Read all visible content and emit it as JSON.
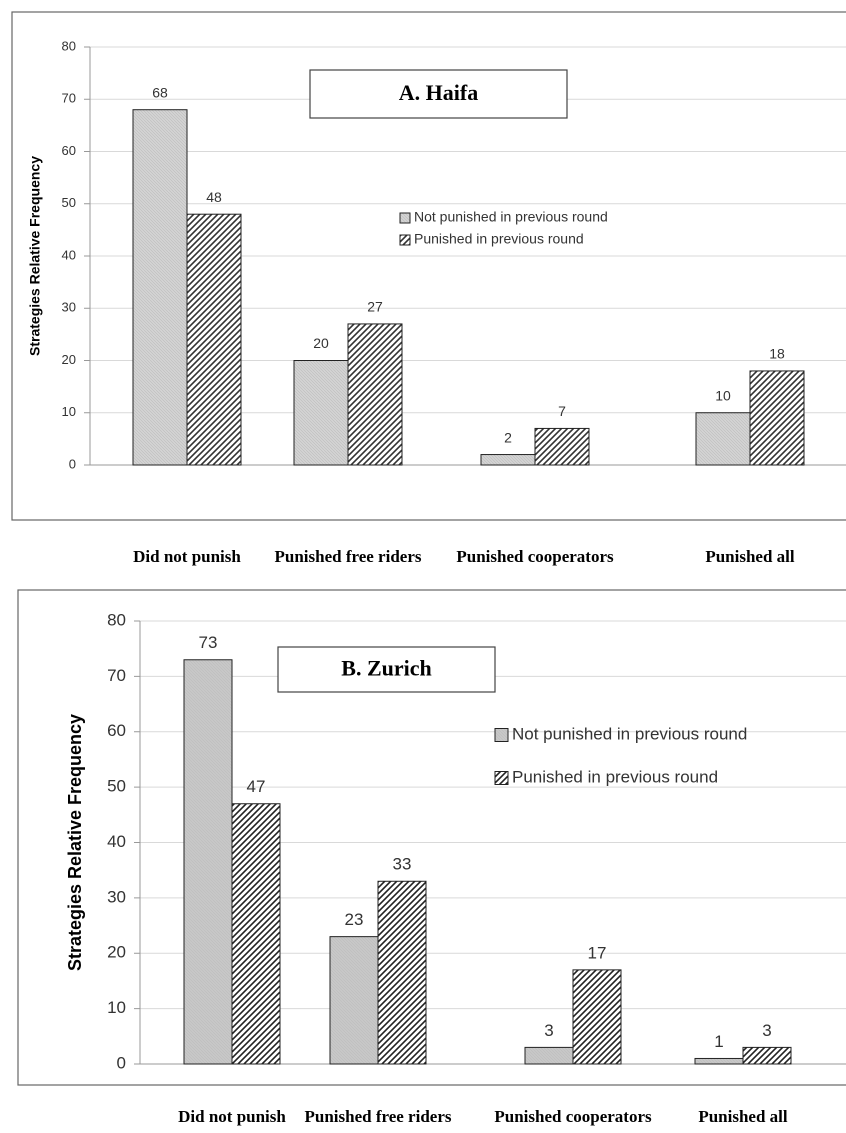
{
  "chart_data": [
    {
      "type": "bar",
      "title": "A. Haifa",
      "y_label": "Strategies Relative Frequency",
      "categories": [
        "Did not punish",
        "Punished free riders",
        "Punished cooperators",
        "Punished all"
      ],
      "series": [
        {
          "name": "Not punished in previous round",
          "color": "#d4d4d4",
          "pattern": "dots",
          "values": [
            68,
            20,
            2,
            10
          ]
        },
        {
          "name": "Punished in previous round",
          "color": "#333333",
          "pattern": "hatch",
          "values": [
            48,
            27,
            7,
            18
          ]
        }
      ],
      "ylim": [
        0,
        80
      ],
      "yticks": [
        0,
        10,
        20,
        30,
        40,
        50,
        60,
        70,
        80
      ],
      "grid": true
    },
    {
      "type": "bar",
      "title": "B. Zurich",
      "y_label": "Strategies Relative Frequency",
      "categories": [
        "Did not punish",
        "Punished free riders",
        "Punished cooperators",
        "Punished all"
      ],
      "series": [
        {
          "name": "Not punished in previous round",
          "color": "#c8c8c8",
          "pattern": "dots",
          "values": [
            73,
            23,
            3,
            1
          ]
        },
        {
          "name": "Punished in previous round",
          "color": "#222222",
          "pattern": "hatch",
          "values": [
            47,
            33,
            17,
            3
          ]
        }
      ],
      "ylim": [
        0,
        80
      ],
      "yticks": [
        0,
        10,
        20,
        30,
        40,
        50,
        60,
        70,
        80
      ],
      "grid": true
    }
  ]
}
